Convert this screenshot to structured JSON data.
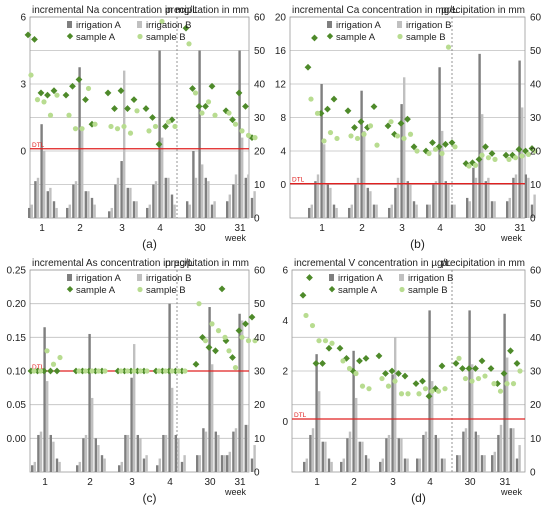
{
  "colors": {
    "irrigation_A": "#7f7f7f",
    "irrigation_B": "#c0c0c0",
    "sample_A": "#4e8a2a",
    "sample_B": "#b8dc90",
    "dtl_line": "#e02020",
    "grid": "#bfbfbf",
    "separator": "#7a7a7a",
    "frame": "#9a9a9a"
  },
  "common": {
    "legend": [
      "irrigation A",
      "irrigation B",
      "sample A",
      "sample B"
    ],
    "week_label": "week",
    "categories": [
      "1",
      "2",
      "3",
      "4",
      "30",
      "31"
    ],
    "right_axis_title": "precipitation in mm",
    "right_axis": {
      "min": 0,
      "max": 60,
      "ticks": [
        0,
        10,
        20,
        30,
        40,
        50,
        60
      ]
    },
    "dtl_label": "DTL"
  },
  "chart_data": [
    {
      "type": "bar+scatter",
      "panel": "(a)",
      "title": "incremental  Na concentration  in mg/L",
      "left_axis": {
        "min": -3,
        "max": 6,
        "ticks": [
          "6",
          "3",
          "0",
          ""
        ]
      },
      "dtl": 0.1,
      "irrigation_A_mm": [
        [
          3,
          11,
          28,
          8,
          5
        ],
        [
          3,
          10,
          45,
          8,
          6
        ],
        [
          2,
          10,
          17,
          9,
          5
        ],
        [
          3,
          10,
          50,
          12,
          7
        ],
        [
          5,
          20,
          50,
          12,
          4
        ],
        [
          5,
          10,
          50,
          12,
          6
        ]
      ],
      "irrigation_B_mm": [
        [
          4,
          12,
          20,
          9,
          3
        ],
        [
          4,
          11,
          26,
          8,
          4
        ],
        [
          3,
          12,
          44,
          9,
          5
        ],
        [
          4,
          11,
          24,
          12,
          4
        ],
        [
          4,
          12,
          16,
          11,
          5
        ],
        [
          7,
          13,
          24,
          13,
          8
        ]
      ],
      "sample_A": [
        [
          5.2,
          5.0,
          2.6,
          2.5,
          2.7
        ],
        [
          2.5,
          2.9,
          3.2,
          2.3,
          1.2
        ],
        [
          2.6,
          1.9,
          2.7,
          1.9,
          2.3
        ],
        [
          1.9,
          1.5,
          0.3,
          1.1,
          1.4
        ],
        [
          5.5,
          2.8,
          2.0,
          2.0,
          2.9
        ],
        [
          1.8,
          1.4,
          2.6,
          2.0,
          0.6
        ]
      ],
      "sample_B": [
        [
          3.4,
          2.3,
          2.2,
          1.6,
          2.5
        ],
        [
          1.6,
          1.0,
          1.0,
          2.8,
          1.2
        ],
        [
          1.1,
          1.0,
          1.1,
          0.8,
          1.8
        ],
        [
          0.9,
          1.1,
          5.8,
          1.3,
          1.1
        ],
        [
          4.8,
          2.6,
          1.7,
          2.2,
          1.6
        ],
        [
          1.7,
          1.2,
          0.9,
          0.7,
          0.6
        ]
      ]
    },
    {
      "type": "bar+scatter",
      "panel": "(b)",
      "title": "incremental  Ca concentration  in mg/L",
      "left_axis": {
        "min": -4,
        "max": 20,
        "ticks": [
          "20",
          "16",
          "12",
          "8",
          "4",
          "0",
          ""
        ]
      },
      "dtl": 0.1,
      "irrigation_A_mm": [
        [
          3,
          11,
          40,
          10,
          4
        ],
        [
          3,
          10,
          38,
          9,
          4
        ],
        [
          3,
          9,
          34,
          11,
          5
        ],
        [
          4,
          10,
          45,
          11,
          4
        ],
        [
          6,
          15,
          49,
          11,
          5
        ],
        [
          5,
          12,
          47,
          13,
          4
        ]
      ],
      "irrigation_B_mm": [
        [
          4,
          13,
          22,
          9,
          3
        ],
        [
          4,
          12,
          26,
          8,
          4
        ],
        [
          4,
          12,
          42,
          10,
          4
        ],
        [
          4,
          11,
          26,
          10,
          4
        ],
        [
          5,
          12,
          31,
          12,
          5
        ],
        [
          6,
          13,
          33,
          12,
          7
        ]
      ],
      "sample_A": [
        [
          14,
          17.5,
          8.5,
          9.0,
          10.2
        ],
        [
          8.8,
          6.8,
          7.5,
          6.8,
          9.3
        ],
        [
          7.0,
          6.0,
          7.3,
          7.8,
          4.5
        ],
        [
          4.0,
          5.0,
          4.5,
          4.8,
          5.0
        ],
        [
          2.5,
          2.6,
          3.0,
          4.5,
          3.7
        ],
        [
          3.5,
          3.5,
          4.2,
          4.0,
          4.3
        ]
      ],
      "sample_B": [
        [
          10.2,
          8.5,
          5.2,
          6.2,
          5.5
        ],
        [
          5.8,
          5.5,
          6.0,
          7.0,
          4.7
        ],
        [
          7.5,
          5.8,
          5.5,
          6.0,
          4.0
        ],
        [
          3.7,
          4.2,
          3.7,
          16.4,
          4.5
        ],
        [
          2.2,
          2.3,
          3.5,
          3.2,
          3.0
        ],
        [
          3.0,
          3.2,
          3.4,
          3.6,
          4.0
        ]
      ]
    },
    {
      "type": "bar+scatter",
      "panel": "(c)",
      "title": "incremental  As concentration  in µg/L",
      "left_axis": {
        "min": -0.05,
        "max": 0.25,
        "ticks": [
          "0.25",
          "0.20",
          "0.15",
          "0.10",
          "0.05",
          "0.00",
          ""
        ]
      },
      "dtl": 0.1,
      "irrigation_A_mm": [
        [
          2,
          11,
          43,
          11,
          4
        ],
        [
          2,
          10,
          41,
          10,
          5
        ],
        [
          2,
          11,
          28,
          11,
          4
        ],
        [
          2,
          11,
          50,
          11,
          3
        ],
        [
          5,
          13,
          49,
          12,
          5
        ],
        [
          5,
          12,
          47,
          14,
          4
        ]
      ],
      "irrigation_B_mm": [
        [
          3,
          12,
          27,
          9,
          3
        ],
        [
          3,
          11,
          22,
          8,
          4
        ],
        [
          3,
          11,
          38,
          10,
          5
        ],
        [
          4,
          11,
          25,
          10,
          5
        ],
        [
          5,
          12,
          32,
          11,
          5
        ],
        [
          6,
          13,
          45,
          14,
          8
        ]
      ],
      "sample_A": [
        [
          0.1,
          0.1,
          0.1,
          0.1,
          0.1
        ],
        [
          0.1,
          0.1,
          0.1,
          0.1,
          0.1
        ],
        [
          0.1,
          0.1,
          0.1,
          0.1,
          0.1
        ],
        [
          0.1,
          0.1,
          0.1,
          0.1,
          0.1
        ],
        [
          0.11,
          0.15,
          0.135,
          0.13,
          0.222
        ],
        [
          0.145,
          0.12,
          0.16,
          0.17,
          0.18
        ]
      ],
      "sample_B": [
        [
          0.1,
          0.1,
          0.13,
          0.11,
          0.12
        ],
        [
          0.1,
          0.1,
          0.1,
          0.1,
          0.1
        ],
        [
          0.1,
          0.1,
          0.1,
          0.1,
          0.1
        ],
        [
          0.1,
          0.1,
          0.1,
          0.1,
          0.1
        ],
        [
          0.2,
          0.145,
          0.17,
          0.16,
          0.15
        ],
        [
          0.13,
          0.105,
          0.15,
          0.145,
          0.145
        ]
      ]
    },
    {
      "type": "bar+scatter",
      "panel": "(d)",
      "title": "incremental  V concentration  in µg/L",
      "left_axis": {
        "min": -2,
        "max": 6,
        "ticks": [
          "6",
          "4",
          "2",
          "0",
          ""
        ]
      },
      "dtl": 0.1,
      "irrigation_A_mm": [
        [
          3,
          11,
          35,
          9,
          4
        ],
        [
          3,
          10,
          36,
          9,
          5
        ],
        [
          3,
          10,
          29,
          10,
          4
        ],
        [
          4,
          11,
          48,
          11,
          4
        ],
        [
          5,
          12,
          48,
          12,
          5
        ],
        [
          5,
          11,
          47,
          13,
          4
        ]
      ],
      "irrigation_B_mm": [
        [
          4,
          13,
          24,
          9,
          3
        ],
        [
          4,
          12,
          22,
          9,
          4
        ],
        [
          4,
          11,
          40,
          10,
          4
        ],
        [
          4,
          12,
          27,
          10,
          4
        ],
        [
          5,
          13,
          32,
          11,
          5
        ],
        [
          6,
          14,
          34,
          13,
          8
        ]
      ],
      "sample_A": [
        [
          5.0,
          5.7,
          2.3,
          2.3,
          2.9
        ],
        [
          2.9,
          2.5,
          2.0,
          2.4,
          2.5
        ],
        [
          2.6,
          1.9,
          2.0,
          1.9,
          1.8
        ],
        [
          1.5,
          1.6,
          1.0,
          1.3,
          2.2
        ],
        [
          2.3,
          2.1,
          2.1,
          2.1,
          2.4
        ],
        [
          2.1,
          1.5,
          1.9,
          2.8,
          2.3
        ]
      ],
      "sample_B": [
        [
          4.2,
          3.8,
          3.2,
          3.2,
          3.1
        ],
        [
          2.4,
          2.1,
          1.9,
          1.4,
          1.3
        ],
        [
          1.7,
          1.4,
          1.6,
          1.1,
          1.1
        ],
        [
          1.1,
          1.3,
          1.2,
          1.2,
          1.3
        ],
        [
          2.5,
          1.7,
          1.6,
          1.7,
          1.8
        ],
        [
          1.5,
          1.2,
          1.5,
          1.5,
          2.0
        ]
      ]
    }
  ]
}
